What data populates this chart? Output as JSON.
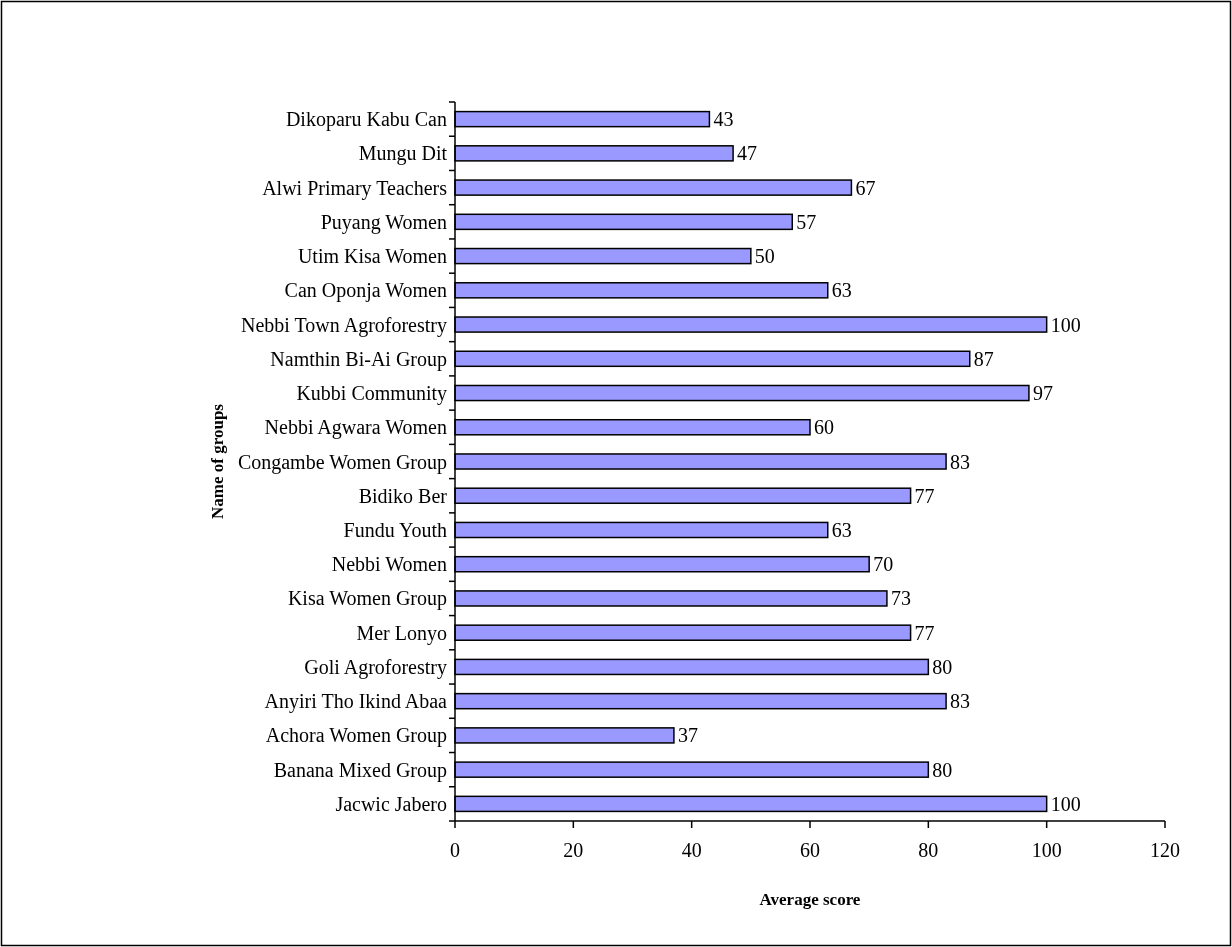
{
  "chart_data": {
    "type": "bar",
    "orientation": "horizontal",
    "xlabel": "Average score",
    "ylabel": "Name of groups",
    "categories": [
      "Dikoparu Kabu Can",
      "Mungu Dit",
      "Alwi Primary Teachers",
      "Puyang Women",
      "Utim Kisa Women",
      "Can Oponja Women",
      "Nebbi Town Agroforestry",
      "Namthin Bi-Ai Group",
      "Kubbi Community",
      "Nebbi Agwara Women",
      "Congambe Women Group",
      "Bidiko Ber",
      "Fundu Youth",
      "Nebbi Women",
      "Kisa Women Group",
      "Mer Lonyo",
      "Goli Agroforestry",
      "Anyiri Tho Ikind Abaa",
      "Achora Women Group",
      "Banana Mixed Group",
      "Jacwic Jabero"
    ],
    "values": [
      43,
      47,
      67,
      57,
      50,
      63,
      100,
      87,
      97,
      60,
      83,
      77,
      63,
      70,
      73,
      77,
      80,
      83,
      37,
      80,
      100
    ],
    "color": "#9999ff",
    "xlim": [
      0,
      120
    ],
    "xticks": [
      0,
      20,
      40,
      60,
      80,
      100,
      120
    ],
    "grid": false,
    "data_labels": true
  }
}
